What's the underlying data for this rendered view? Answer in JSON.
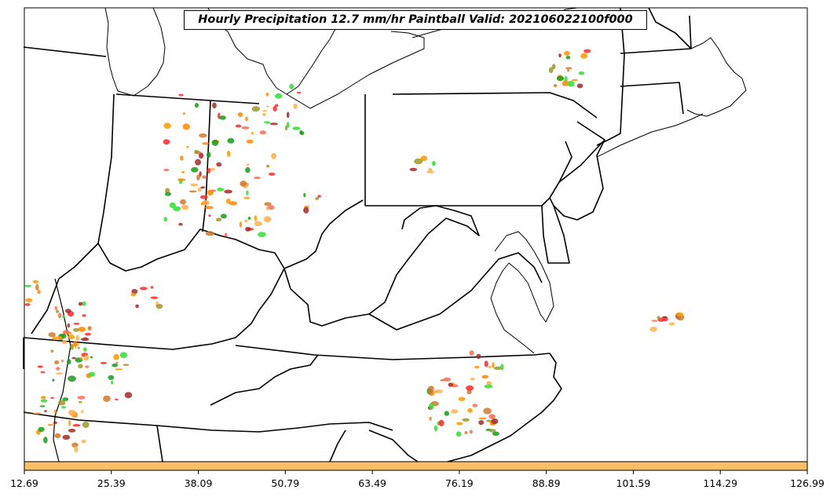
{
  "title": "Hourly Precipitation 12.7 mm/hr Paintball Valid: 202106022100f000",
  "colorbar": {
    "color": "#ffbf66",
    "tick_labels": [
      "12.69",
      "25.39",
      "38.09",
      "50.79",
      "63.49",
      "76.19",
      "88.89",
      "101.59",
      "114.29",
      "126.99"
    ]
  },
  "paintball_colors": [
    "#ff9900",
    "#ff8800",
    "#ff2a2a",
    "#ff6a55",
    "#33dd33",
    "#1a9a1a",
    "#9a9a2a",
    "#a52a2a",
    "#d07a2a",
    "#ffb050"
  ]
}
